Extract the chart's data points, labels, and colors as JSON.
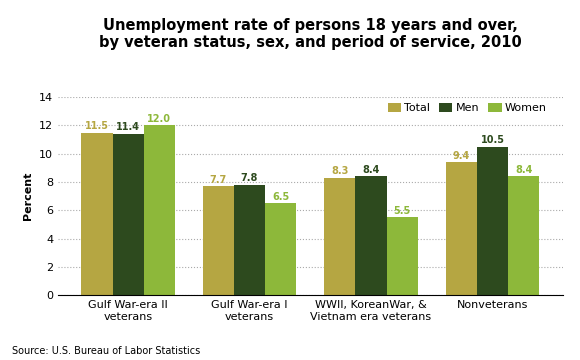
{
  "title": "Unemployment rate of persons 18 years and over,\nby veteran status, sex, and period of service, 2010",
  "categories": [
    "Gulf War-era II\nveterans",
    "Gulf War-era I\nveterans",
    "WWII, KoreanWar, &\nVietnam era veterans",
    "Nonveterans"
  ],
  "series": {
    "Total": [
      11.5,
      7.7,
      8.3,
      9.4
    ],
    "Men": [
      11.4,
      7.8,
      8.4,
      10.5
    ],
    "Women": [
      12.0,
      6.5,
      5.5,
      8.4
    ]
  },
  "colors": {
    "Total": "#b5a642",
    "Men": "#2d4a1e",
    "Women": "#8db83a"
  },
  "ylabel": "Percent",
  "ylim": [
    0,
    14
  ],
  "yticks": [
    0,
    2,
    4,
    6,
    8,
    10,
    12,
    14
  ],
  "legend_labels": [
    "Total",
    "Men",
    "Women"
  ],
  "source": "Source: U.S. Bureau of Labor Statistics",
  "title_fontsize": 10.5,
  "label_fontsize": 8,
  "bar_label_fontsize": 7,
  "axis_tick_fontsize": 8,
  "background_color": "#ffffff"
}
